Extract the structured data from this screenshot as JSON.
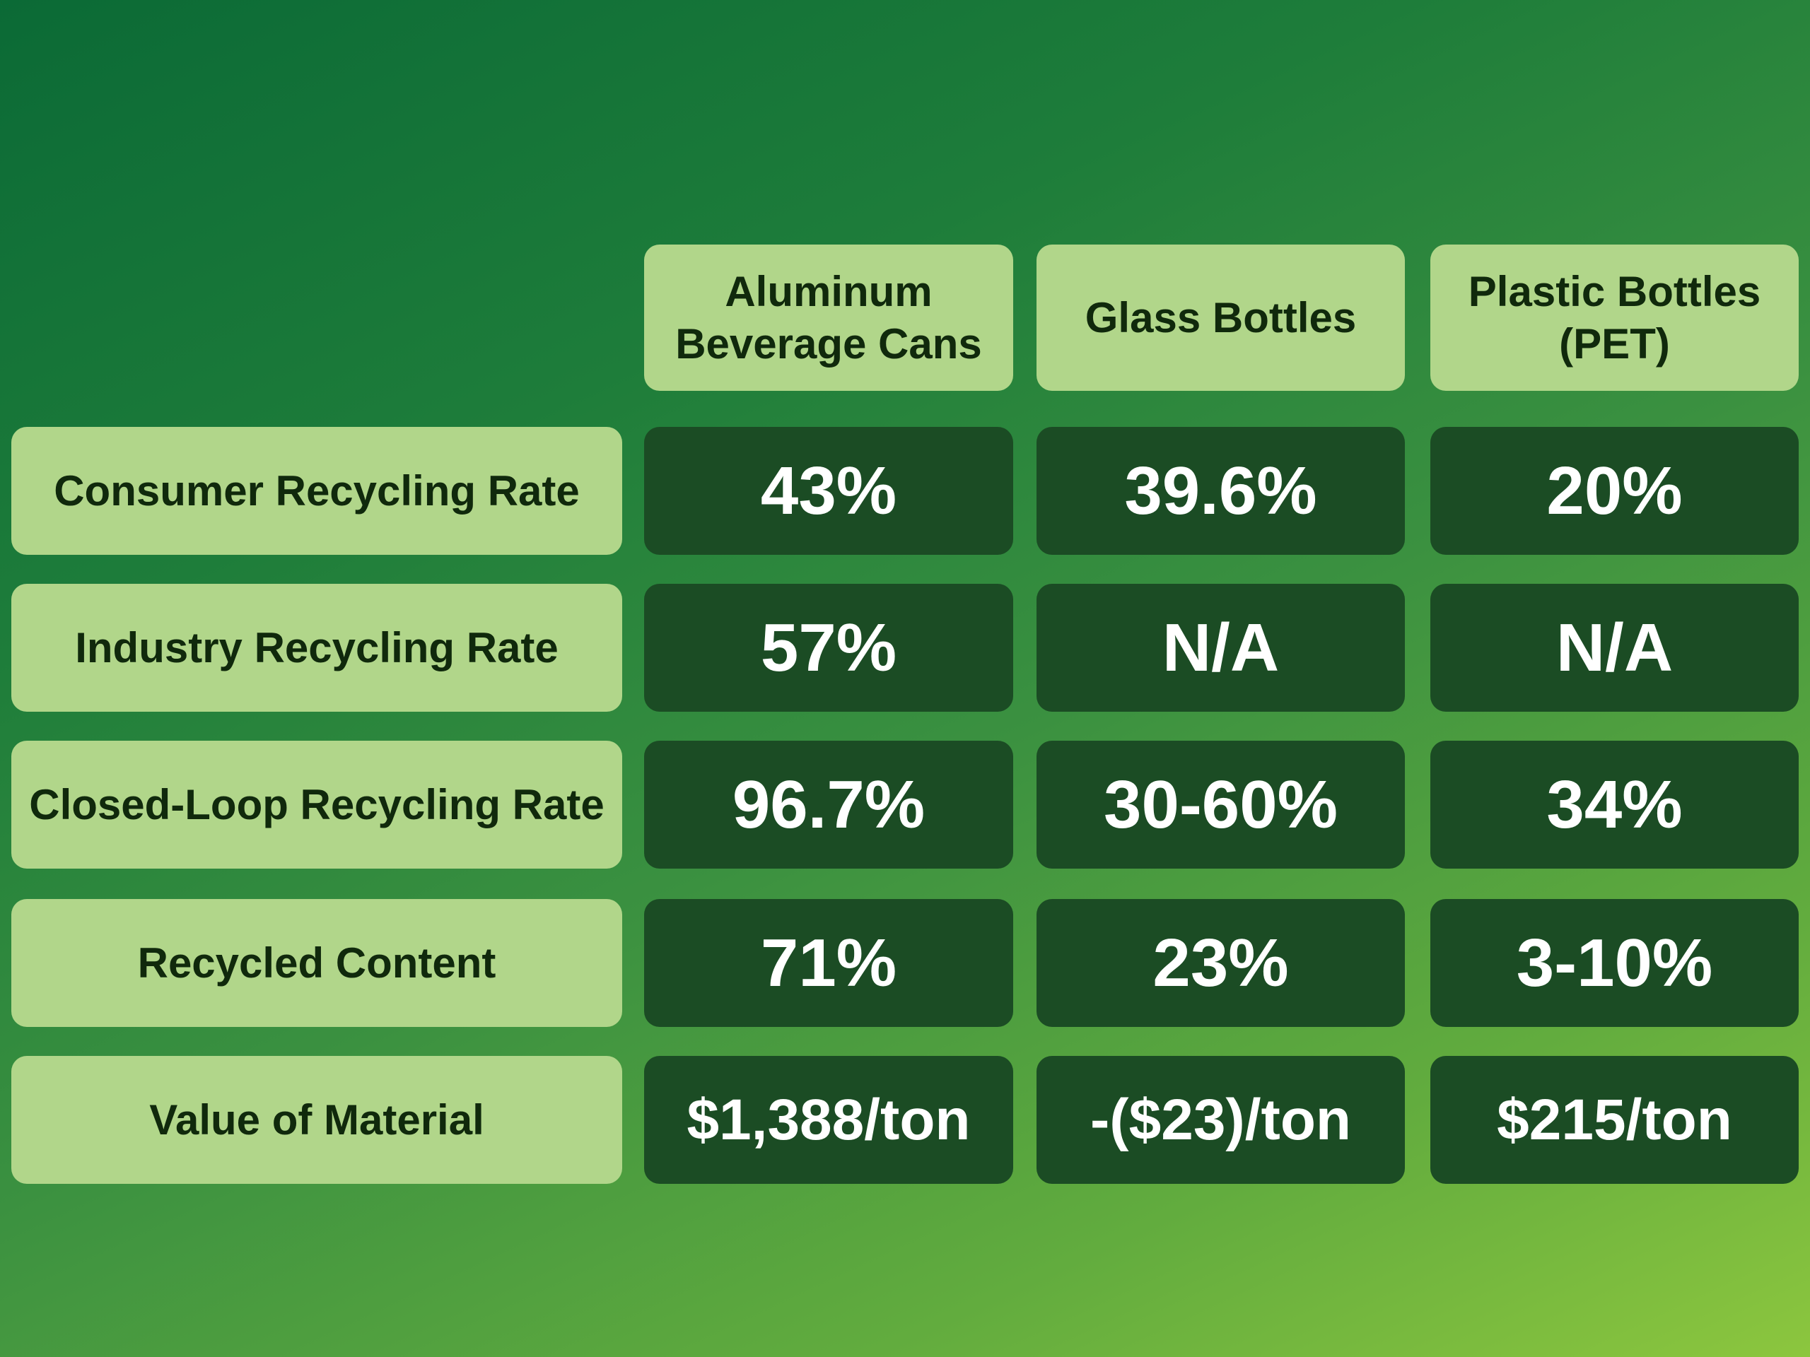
{
  "colors": {
    "header_bg": "#b1d68a",
    "value_bg": "#1b4c24",
    "label_text": "#10290c",
    "value_text": "#ffffff"
  },
  "columns": [
    "Aluminum\nBeverage Cans",
    "Glass Bottles",
    "Plastic Bottles\n(PET)"
  ],
  "rows": [
    {
      "label": "Consumer Recycling Rate",
      "values": [
        "43%",
        "39.6%",
        "20%"
      ]
    },
    {
      "label": "Industry Recycling Rate",
      "values": [
        "57%",
        "N/A",
        "N/A"
      ]
    },
    {
      "label": "Closed-Loop Recycling Rate",
      "values": [
        "96.7%",
        "30-60%",
        "34%"
      ]
    },
    {
      "label": "Recycled Content",
      "values": [
        "71%",
        "23%",
        "3-10%"
      ]
    },
    {
      "label": "Value of Material",
      "values": [
        "$1,388/ton",
        "-($23)/ton",
        "$215/ton"
      ]
    }
  ]
}
